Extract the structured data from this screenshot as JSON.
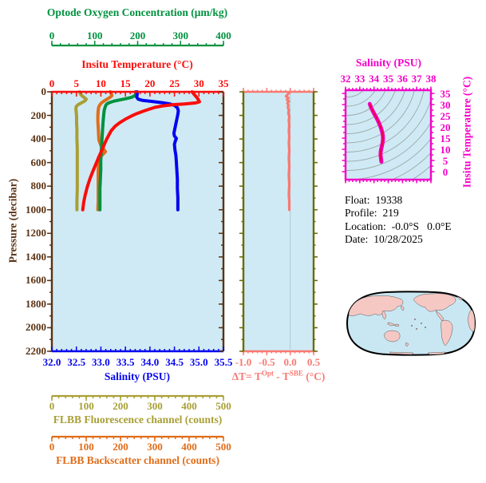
{
  "colors": {
    "oxygen": "#00923f",
    "temperature": "#fa0d0a",
    "pressure": "#5a3315",
    "salinity": "#0505f0",
    "fluorescence": "#a89f35",
    "backscatter": "#e06d1a",
    "delta_t": "#f97a72",
    "delta_t_side_axis": "#6b6b0a",
    "ts_magenta": "#f400c8",
    "ts_curve_core": "#e80040",
    "plot_background": "#cfeaf4",
    "contour_gray": "#9aa8aa",
    "zero_gridline": "#a8c6d0",
    "map_ocean": "#c9e7f2",
    "map_land": "#f5c8c3",
    "map_outline": "#000000",
    "info_text": "#000000"
  },
  "axes": {
    "oxygen": {
      "title": "Optode Oxygen Concentration (μm/kg)",
      "tick_labels": [
        "0",
        "100",
        "200",
        "300",
        "400"
      ],
      "min": 0,
      "max": 400
    },
    "temperature": {
      "title": "Insitu Temperature (°C)",
      "tick_labels": [
        "0",
        "5",
        "10",
        "15",
        "20",
        "25",
        "30",
        "35"
      ],
      "min": 0,
      "max": 35
    },
    "pressure": {
      "title": "Pressure (decibar)",
      "tick_labels": [
        "0",
        "200",
        "400",
        "600",
        "800",
        "1000",
        "1200",
        "1400",
        "1600",
        "1800",
        "2000",
        "2200"
      ],
      "min": 0,
      "max": 2200
    },
    "salinity": {
      "title": "Salinity (PSU)",
      "tick_labels": [
        "32.0",
        "32.5",
        "33.0",
        "33.5",
        "34.0",
        "34.5",
        "35.0",
        "35.5"
      ],
      "min": 32.0,
      "max": 35.5
    },
    "fluorescence": {
      "title": "FLBB Fluorescence channel (counts)",
      "tick_labels": [
        "0",
        "100",
        "200",
        "300",
        "400",
        "500"
      ],
      "min": 0,
      "max": 500
    },
    "backscatter": {
      "title": "FLBB Backscatter channel (counts)",
      "tick_labels": [
        "0",
        "100",
        "200",
        "300",
        "400",
        "500"
      ],
      "min": 0,
      "max": 500
    },
    "delta_t": {
      "title_pre": "ΔT= T",
      "title_sup1": "Opt",
      "title_mid": " - T",
      "title_sup2": "SBE",
      "title_post": " (°C)",
      "tick_labels": [
        "-1.0",
        "-0.5",
        "0.0",
        "0.5"
      ],
      "min": -1.0,
      "max": 0.5
    },
    "ts_salinity": {
      "title": "Salinity (PSU)",
      "tick_labels": [
        "32",
        "33",
        "34",
        "35",
        "36",
        "37",
        "38"
      ],
      "min": 32,
      "max": 38
    },
    "ts_temperature": {
      "title": "Insitu Temperature (°C)",
      "tick_labels": [
        "35",
        "30",
        "25",
        "20",
        "15",
        "10",
        "5",
        "0"
      ],
      "min": 0,
      "max": 35
    }
  },
  "info": {
    "rows": [
      {
        "label": "Float:",
        "value": "19338"
      },
      {
        "label": "Profile:",
        "value": "219"
      },
      {
        "label": "Location:",
        "value": "-0.0°S   0.0°E"
      },
      {
        "label": "Date:",
        "value": "10/28/2025"
      }
    ]
  },
  "chart_data": {
    "type": "line",
    "panels": [
      {
        "name": "profile-panel",
        "x_axes": [
          "temperature",
          "oxygen",
          "salinity",
          "fluorescence",
          "backscatter"
        ],
        "y_axis": "pressure",
        "y_range": [
          0,
          2200
        ],
        "data_max_pressure": 1000,
        "grid": false
      },
      {
        "name": "delta-t-panel",
        "x_axis": "delta_t",
        "x_range": [
          -1.0,
          0.5
        ],
        "y_axis": "pressure",
        "y_range": [
          0,
          2200
        ],
        "zero_line": true
      },
      {
        "name": "ts-panel",
        "x_axis": "ts_salinity",
        "x_range": [
          32,
          38
        ],
        "y_axis": "ts_temperature",
        "y_range": [
          0,
          35
        ],
        "contours": "isopycnals"
      }
    ],
    "series": [
      {
        "name": "temperature",
        "axis": "temperature",
        "units": "°C",
        "color": "#fa0d0a",
        "points": [
          [
            28.6,
            0
          ],
          [
            28.9,
            15
          ],
          [
            29.3,
            35
          ],
          [
            29.7,
            55
          ],
          [
            30.0,
            75
          ],
          [
            30.1,
            85
          ],
          [
            29.2,
            95
          ],
          [
            27.0,
            103
          ],
          [
            24.5,
            110
          ],
          [
            22.5,
            120
          ],
          [
            21.0,
            132
          ],
          [
            19.8,
            148
          ],
          [
            18.6,
            165
          ],
          [
            17.3,
            185
          ],
          [
            16.1,
            208
          ],
          [
            15.0,
            232
          ],
          [
            13.9,
            260
          ],
          [
            12.9,
            292
          ],
          [
            12.1,
            330
          ],
          [
            11.6,
            368
          ],
          [
            11.1,
            408
          ],
          [
            10.6,
            455
          ],
          [
            10.1,
            505
          ],
          [
            9.5,
            560
          ],
          [
            8.9,
            620
          ],
          [
            8.3,
            680
          ],
          [
            7.7,
            745
          ],
          [
            7.2,
            810
          ],
          [
            6.8,
            875
          ],
          [
            6.5,
            935
          ],
          [
            6.3,
            1000
          ]
        ]
      },
      {
        "name": "salinity",
        "axis": "salinity",
        "units": "PSU",
        "color": "#0505f0",
        "points": [
          [
            33.74,
            0
          ],
          [
            33.74,
            25
          ],
          [
            33.73,
            45
          ],
          [
            33.76,
            62
          ],
          [
            33.85,
            73
          ],
          [
            34.05,
            82
          ],
          [
            34.25,
            92
          ],
          [
            34.4,
            102
          ],
          [
            34.5,
            115
          ],
          [
            34.56,
            135
          ],
          [
            34.58,
            160
          ],
          [
            34.57,
            190
          ],
          [
            34.55,
            230
          ],
          [
            34.53,
            270
          ],
          [
            34.51,
            310
          ],
          [
            34.49,
            350
          ],
          [
            34.5,
            375
          ],
          [
            34.54,
            395
          ],
          [
            34.52,
            415
          ],
          [
            34.5,
            445
          ],
          [
            34.51,
            490
          ],
          [
            34.53,
            540
          ],
          [
            34.54,
            600
          ],
          [
            34.55,
            670
          ],
          [
            34.56,
            740
          ],
          [
            34.56,
            820
          ],
          [
            34.57,
            900
          ],
          [
            34.57,
            1000
          ]
        ]
      },
      {
        "name": "oxygen",
        "axis": "oxygen",
        "units": "μm/kg",
        "color": "#00923f",
        "points": [
          [
            195,
            0
          ],
          [
            196,
            15
          ],
          [
            194,
            30
          ],
          [
            187,
            45
          ],
          [
            174,
            57
          ],
          [
            159,
            68
          ],
          [
            146,
            78
          ],
          [
            137,
            88
          ],
          [
            130,
            98
          ],
          [
            126,
            112
          ],
          [
            124,
            132
          ],
          [
            122,
            158
          ],
          [
            121,
            190
          ],
          [
            120,
            230
          ],
          [
            119,
            275
          ],
          [
            118,
            330
          ],
          [
            117,
            390
          ],
          [
            116,
            450
          ],
          [
            115,
            515
          ],
          [
            114,
            585
          ],
          [
            114,
            660
          ],
          [
            113,
            740
          ],
          [
            112,
            820
          ],
          [
            112,
            910
          ],
          [
            112,
            1000
          ]
        ]
      },
      {
        "name": "fluorescence",
        "axis": "fluorescence",
        "units": "counts",
        "color": "#a89f35",
        "points": [
          [
            81,
            0
          ],
          [
            83,
            18
          ],
          [
            88,
            35
          ],
          [
            95,
            50
          ],
          [
            100,
            62
          ],
          [
            97,
            76
          ],
          [
            87,
            92
          ],
          [
            77,
            108
          ],
          [
            71,
            124
          ],
          [
            70,
            145
          ],
          [
            71,
            175
          ],
          [
            72,
            210
          ],
          [
            72,
            260
          ],
          [
            73,
            320
          ],
          [
            73,
            400
          ],
          [
            74,
            480
          ],
          [
            74,
            560
          ],
          [
            74,
            650
          ],
          [
            74,
            740
          ],
          [
            74,
            830
          ],
          [
            73,
            920
          ],
          [
            73,
            1000
          ]
        ]
      },
      {
        "name": "backscatter",
        "axis": "backscatter",
        "units": "counts",
        "color": "#e06d1a",
        "points": [
          [
            170,
            0
          ],
          [
            173,
            16
          ],
          [
            175,
            32
          ],
          [
            169,
            48
          ],
          [
            160,
            64
          ],
          [
            151,
            80
          ],
          [
            144,
            96
          ],
          [
            139,
            114
          ],
          [
            136,
            135
          ],
          [
            135,
            160
          ],
          [
            134,
            200
          ],
          [
            134,
            250
          ],
          [
            135,
            300
          ],
          [
            136,
            355
          ],
          [
            137,
            410
          ],
          [
            143,
            455
          ],
          [
            151,
            485
          ],
          [
            156,
            508
          ],
          [
            147,
            535
          ],
          [
            139,
            565
          ],
          [
            136,
            605
          ],
          [
            135,
            655
          ],
          [
            135,
            715
          ],
          [
            135,
            785
          ],
          [
            135,
            860
          ],
          [
            135,
            930
          ],
          [
            134,
            1000
          ]
        ]
      }
    ],
    "delta_t_series": {
      "name": "delta-t",
      "units": "°C",
      "color": "#f97a72",
      "points": [
        [
          0.0,
          0
        ],
        [
          -0.03,
          12
        ],
        [
          -0.06,
          25
        ],
        [
          -0.09,
          38
        ],
        [
          -0.04,
          52
        ],
        [
          -0.07,
          66
        ],
        [
          -0.03,
          80
        ],
        [
          -0.06,
          95
        ],
        [
          -0.04,
          112
        ],
        [
          -0.05,
          132
        ],
        [
          -0.03,
          155
        ],
        [
          -0.04,
          180
        ],
        [
          -0.02,
          210
        ],
        [
          -0.03,
          245
        ],
        [
          -0.02,
          285
        ],
        [
          -0.03,
          330
        ],
        [
          -0.02,
          380
        ],
        [
          -0.03,
          435
        ],
        [
          -0.02,
          495
        ],
        [
          -0.03,
          560
        ],
        [
          -0.02,
          630
        ],
        [
          -0.03,
          705
        ],
        [
          -0.02,
          785
        ],
        [
          -0.03,
          870
        ],
        [
          -0.02,
          935
        ],
        [
          -0.02,
          1000
        ]
      ]
    },
    "ts_series": {
      "name": "ts-curve",
      "color": "#f400c8",
      "points": [
        [
          33.7,
          30.3
        ],
        [
          33.76,
          29.2
        ],
        [
          33.86,
          27.8
        ],
        [
          33.98,
          26.3
        ],
        [
          34.12,
          24.7
        ],
        [
          34.26,
          23.0
        ],
        [
          34.38,
          21.3
        ],
        [
          34.49,
          19.5
        ],
        [
          34.57,
          17.8
        ],
        [
          34.62,
          16.2
        ],
        [
          34.63,
          14.7
        ],
        [
          34.61,
          13.2
        ],
        [
          34.56,
          11.7
        ],
        [
          34.51,
          10.3
        ],
        [
          34.47,
          8.9
        ],
        [
          34.46,
          7.6
        ],
        [
          34.48,
          6.4
        ],
        [
          34.5,
          5.3
        ],
        [
          34.52,
          4.4
        ]
      ]
    }
  }
}
